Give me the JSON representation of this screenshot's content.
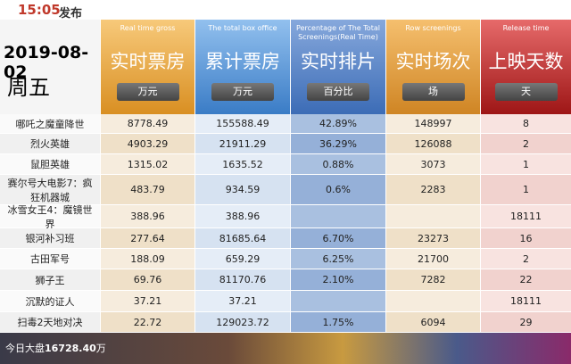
{
  "header": {
    "time": "15:05",
    "label": "发布",
    "date": "2019-08-02",
    "weekday": "周五"
  },
  "columns": [
    {
      "en": "Real time gross",
      "title": "实时票房",
      "unit": "万元"
    },
    {
      "en": "The total box office",
      "title": "累计票房",
      "unit": "万元"
    },
    {
      "en": "Percentage of The Total Screenings(Real Time)",
      "title": "实时排片",
      "unit": "百分比"
    },
    {
      "en": "Row screenings",
      "title": "实时场次",
      "unit": "场"
    },
    {
      "en": "Release time",
      "title": "上映天数",
      "unit": "天"
    }
  ],
  "rows": [
    {
      "name": "哪吒之魔童降世",
      "cells": [
        "8778.49",
        "155588.49",
        "42.89%",
        "148997",
        "8"
      ]
    },
    {
      "name": "烈火英雄",
      "cells": [
        "4903.29",
        "21911.29",
        "36.29%",
        "126088",
        "2"
      ]
    },
    {
      "name": "鼠胆英雄",
      "cells": [
        "1315.02",
        "1635.52",
        "0.88%",
        "3073",
        "1"
      ]
    },
    {
      "name": "赛尔号大电影7：疯狂机器城",
      "cells": [
        "483.79",
        "934.59",
        "0.6%",
        "2283",
        "1"
      ]
    },
    {
      "name": "冰雪女王4：魔镜世界",
      "cells": [
        "388.96",
        "388.96",
        null,
        null,
        "18111"
      ]
    },
    {
      "name": "银河补习班",
      "cells": [
        "277.64",
        "81685.64",
        "6.70%",
        "23273",
        "16"
      ]
    },
    {
      "name": "古田军号",
      "cells": [
        "188.09",
        "659.29",
        "6.25%",
        "21700",
        "2"
      ]
    },
    {
      "name": "狮子王",
      "cells": [
        "69.76",
        "81170.76",
        "2.10%",
        "7282",
        "22"
      ]
    },
    {
      "name": "沉默的证人",
      "cells": [
        "37.21",
        "37.21",
        null,
        null,
        "18111"
      ]
    },
    {
      "name": "扫毒2天地对决",
      "cells": [
        "22.72",
        "129023.72",
        "1.75%",
        "6094",
        "29"
      ]
    }
  ],
  "footer": {
    "prefix": "今日大盘",
    "amount": "16728.40",
    "suffix": "万"
  }
}
